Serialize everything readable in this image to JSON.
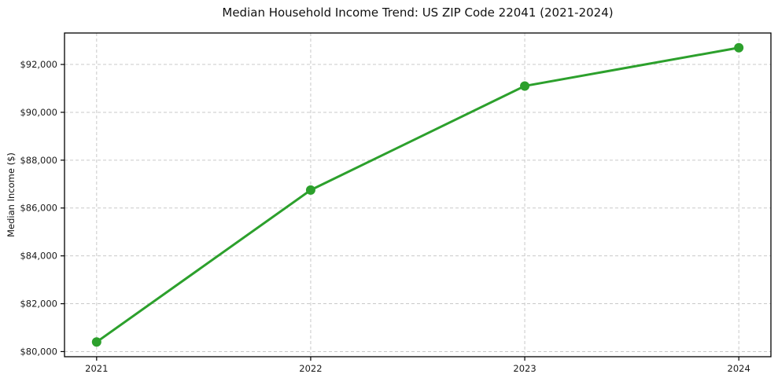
{
  "figure": {
    "background": "#ffffff"
  },
  "chart_data": {
    "type": "line",
    "title": "Median Household Income Trend: US ZIP Code 22041 (2021-2024)",
    "xlabel": "",
    "ylabel": "Median Income ($)",
    "x": [
      2021,
      2022,
      2023,
      2024
    ],
    "series": [
      {
        "name": "Median Household Income",
        "values": [
          80400,
          86750,
          91100,
          92700
        ],
        "color": "#2ca02c",
        "marker": "circle"
      }
    ],
    "xticks": {
      "values": [
        2021,
        2022,
        2023,
        2024
      ],
      "labels": [
        "2021",
        "2022",
        "2023",
        "2024"
      ]
    },
    "yticks": {
      "values": [
        80000,
        82000,
        84000,
        86000,
        88000,
        90000,
        92000
      ],
      "labels": [
        "$80,000",
        "$82,000",
        "$84,000",
        "$86,000",
        "$88,000",
        "$90,000",
        "$92,000"
      ]
    },
    "xlim": [
      2020.85,
      2024.15
    ],
    "ylim": [
      79785,
      93315
    ],
    "grid": true,
    "grid_style": "dashed",
    "legend": false,
    "colors": {
      "line": "#2ca02c",
      "marker": "#2ca02c",
      "grid": "#c9c9c9",
      "axis": "#000000",
      "text": "#1a1a1a",
      "background": "#ffffff"
    }
  }
}
